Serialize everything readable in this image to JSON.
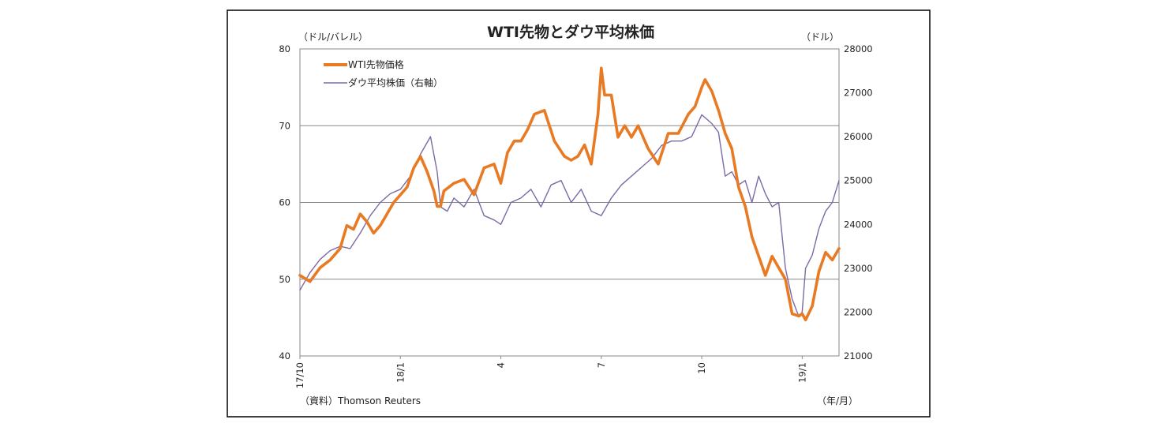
{
  "chart_data": {
    "type": "line",
    "title": "WTI先物とダウ平均株価",
    "y_left_unit": "（ドル/バレル）",
    "y_right_unit": "（ドル）",
    "x_unit": "（年/月）",
    "source": "（資料）Thomson Reuters",
    "x_ticks": [
      "17/10",
      "18/1",
      "4",
      "7",
      "10",
      "19/1"
    ],
    "x_tick_pos": [
      0,
      3,
      6,
      9,
      12,
      15
    ],
    "x_range": [
      0,
      16.1
    ],
    "y_left": {
      "range": [
        40,
        80
      ],
      "ticks": [
        "80",
        "70",
        "60",
        "50",
        "40"
      ],
      "tick_values": [
        80,
        70,
        60,
        50,
        40
      ]
    },
    "y_right": {
      "range": [
        21000,
        28000
      ],
      "ticks": [
        "28000",
        "27000",
        "26000",
        "25000",
        "24000",
        "23000",
        "22000",
        "21000"
      ],
      "tick_values": [
        28000,
        27000,
        26000,
        25000,
        24000,
        23000,
        22000,
        21000
      ]
    },
    "grid": {
      "horizontal": true,
      "vertical": false
    },
    "legend_position": "top-left",
    "series": [
      {
        "name": "WTI先物価格",
        "axis": "left",
        "color": "#e87a24",
        "x": [
          0,
          0.3,
          0.6,
          0.9,
          1.2,
          1.4,
          1.6,
          1.8,
          2.0,
          2.2,
          2.4,
          2.6,
          2.8,
          3.0,
          3.2,
          3.4,
          3.6,
          3.8,
          4.0,
          4.1,
          4.2,
          4.3,
          4.6,
          4.9,
          5.2,
          5.5,
          5.8,
          6.0,
          6.2,
          6.4,
          6.6,
          6.8,
          7.0,
          7.3,
          7.6,
          7.9,
          8.1,
          8.3,
          8.5,
          8.7,
          8.9,
          9.0,
          9.1,
          9.3,
          9.5,
          9.7,
          9.9,
          10.1,
          10.4,
          10.7,
          11.0,
          11.3,
          11.6,
          11.8,
          12.0,
          12.1,
          12.3,
          12.5,
          12.7,
          12.9,
          13.1,
          13.3,
          13.5,
          13.7,
          13.9,
          14.1,
          14.3,
          14.5,
          14.7,
          14.9,
          15.0,
          15.1,
          15.3,
          15.5,
          15.7,
          15.9,
          16.1
        ],
        "y": [
          50.5,
          49.7,
          51.5,
          52.5,
          54.0,
          57.0,
          56.5,
          58.5,
          57.5,
          56.0,
          57.0,
          58.5,
          60.0,
          61.0,
          62.0,
          64.5,
          66.0,
          64.0,
          61.5,
          59.5,
          59.5,
          61.5,
          62.5,
          63.0,
          61.0,
          64.5,
          65.0,
          62.5,
          66.5,
          68.0,
          68.0,
          69.5,
          71.5,
          72.0,
          68.0,
          66.0,
          65.5,
          66.0,
          67.5,
          65.0,
          71.5,
          77.5,
          74.0,
          74.0,
          68.5,
          70.0,
          68.5,
          70.0,
          67.0,
          65.0,
          69.0,
          69.0,
          71.5,
          72.5,
          75.0,
          76.0,
          74.5,
          72.0,
          69.0,
          67.0,
          62.0,
          59.5,
          55.5,
          53.0,
          50.5,
          53.0,
          51.5,
          50.0,
          45.5,
          45.2,
          45.5,
          44.7,
          46.5,
          51.0,
          53.5,
          52.5,
          54.0
        ]
      },
      {
        "name": "ダウ平均株価（右軸）",
        "axis": "right",
        "color": "#7b6aa5",
        "x": [
          0,
          0.3,
          0.6,
          0.9,
          1.2,
          1.5,
          1.8,
          2.1,
          2.4,
          2.7,
          3.0,
          3.3,
          3.6,
          3.9,
          4.1,
          4.2,
          4.4,
          4.6,
          4.9,
          5.2,
          5.5,
          5.8,
          6.0,
          6.3,
          6.6,
          6.9,
          7.2,
          7.5,
          7.8,
          8.1,
          8.4,
          8.7,
          9.0,
          9.3,
          9.6,
          9.9,
          10.2,
          10.5,
          10.8,
          11.1,
          11.4,
          11.7,
          12.0,
          12.3,
          12.5,
          12.7,
          12.9,
          13.1,
          13.3,
          13.5,
          13.7,
          13.9,
          14.1,
          14.3,
          14.5,
          14.7,
          14.9,
          15.0,
          15.1,
          15.3,
          15.5,
          15.7,
          15.9,
          16.1
        ],
        "y": [
          22500,
          22900,
          23200,
          23400,
          23500,
          23450,
          23800,
          24200,
          24500,
          24700,
          24800,
          25100,
          25600,
          26000,
          25200,
          24400,
          24300,
          24600,
          24400,
          24800,
          24200,
          24100,
          24000,
          24500,
          24600,
          24800,
          24400,
          24900,
          25000,
          24500,
          24800,
          24300,
          24200,
          24600,
          24900,
          25100,
          25300,
          25500,
          25800,
          25900,
          25900,
          26000,
          26500,
          26300,
          26100,
          25100,
          25200,
          24900,
          25000,
          24500,
          25100,
          24700,
          24400,
          24500,
          23000,
          22300,
          21900,
          22000,
          23000,
          23300,
          23900,
          24300,
          24500,
          25000
        ]
      }
    ]
  }
}
